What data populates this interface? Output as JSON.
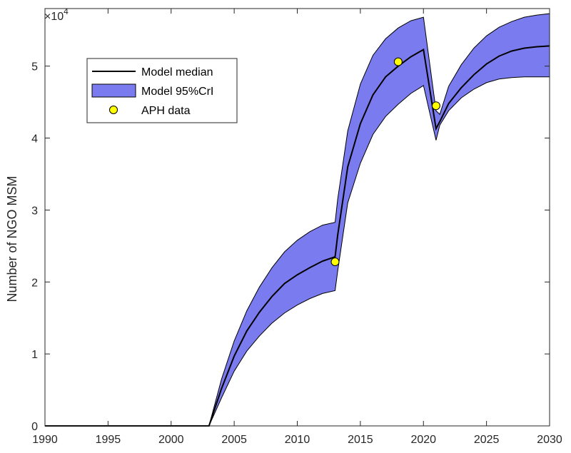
{
  "chart_data": {
    "type": "line",
    "title": "",
    "xlabel": "",
    "ylabel": "Number of NGO MSM",
    "exponent_base": "×10",
    "exponent_power": "4",
    "xlim": [
      1990,
      2030
    ],
    "ylim": [
      0,
      58000
    ],
    "x_ticks": [
      1990,
      1995,
      2000,
      2005,
      2010,
      2015,
      2020,
      2025,
      2030
    ],
    "y_ticks": [
      0,
      10000,
      20000,
      30000,
      40000,
      50000
    ],
    "y_tick_labels": [
      "0",
      "1",
      "2",
      "3",
      "4",
      "5"
    ],
    "grid": false,
    "legend_position": "top-left",
    "series": [
      {
        "name": "Model median",
        "kind": "line",
        "color": "#000000",
        "x": [
          1990,
          2003,
          2004,
          2005,
          2006,
          2007,
          2008,
          2009,
          2010,
          2011,
          2012,
          2013,
          2013.2,
          2014,
          2015,
          2016,
          2017,
          2018,
          2019,
          2020,
          2021,
          2021.3,
          2022,
          2023,
          2024,
          2025,
          2026,
          2027,
          2028,
          2029,
          2030
        ],
        "y": [
          0,
          0,
          5200,
          9700,
          13200,
          15800,
          18000,
          19800,
          21000,
          22000,
          22900,
          23500,
          26500,
          36000,
          42000,
          46000,
          48500,
          50000,
          51300,
          52300,
          41300,
          42300,
          44800,
          47000,
          48800,
          50300,
          51400,
          52100,
          52500,
          52700,
          52800
        ]
      },
      {
        "name": "Model 95%CrI",
        "kind": "band",
        "color": "#7b7bf0",
        "x": [
          1990,
          2003,
          2004,
          2005,
          2006,
          2007,
          2008,
          2009,
          2010,
          2011,
          2012,
          2013,
          2013.2,
          2014,
          2015,
          2016,
          2017,
          2018,
          2019,
          2020,
          2021,
          2021.3,
          2022,
          2023,
          2024,
          2025,
          2026,
          2027,
          2028,
          2029,
          2030
        ],
        "upper": [
          0,
          0,
          6500,
          11800,
          16000,
          19300,
          22000,
          24200,
          25800,
          27000,
          27900,
          28300,
          31500,
          41000,
          47500,
          51500,
          53800,
          55300,
          56300,
          56800,
          43800,
          43300,
          47200,
          50200,
          52500,
          54200,
          55400,
          56200,
          56800,
          57100,
          57300
        ],
        "lower": [
          0,
          0,
          3900,
          7600,
          10400,
          12500,
          14300,
          15700,
          16800,
          17700,
          18400,
          18800,
          21500,
          31000,
          36500,
          40500,
          43000,
          44700,
          46200,
          47300,
          39700,
          41800,
          43800,
          45600,
          46800,
          47700,
          48200,
          48400,
          48500,
          48500,
          48500
        ]
      },
      {
        "name": "APH data",
        "kind": "scatter",
        "color": "#ffff00",
        "x": [
          2013,
          2018,
          2021
        ],
        "y": [
          22800,
          50600,
          44500
        ]
      }
    ]
  }
}
